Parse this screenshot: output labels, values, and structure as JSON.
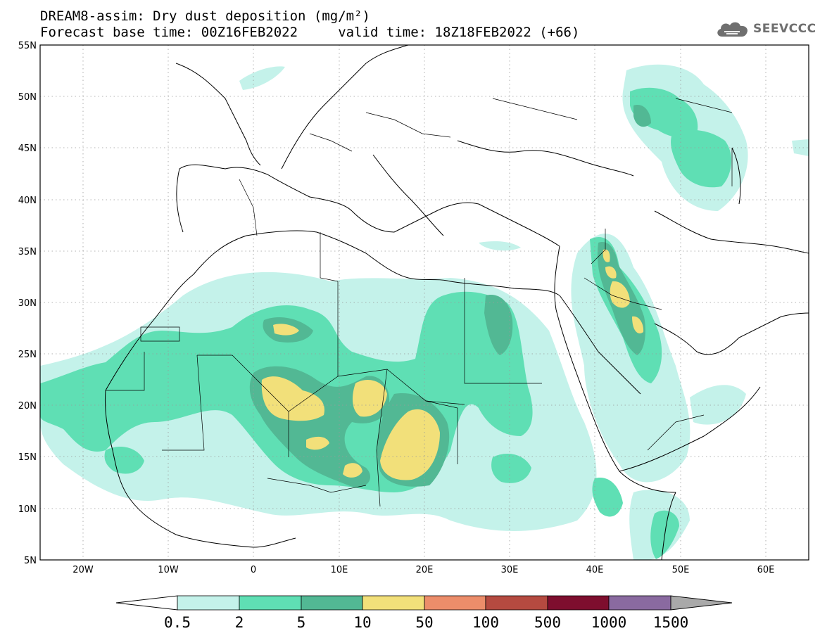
{
  "title_line1": "DREAM8-assim: Dry dust deposition (mg/m²)",
  "title_line2": "Forecast base time: 00Z16FEB2022     valid time: 18Z18FEB2022 (+66)",
  "brand": {
    "name": "SEEVCCC",
    "icon": "cloud-logo-icon"
  },
  "map": {
    "lat_range": [
      5,
      55
    ],
    "lon_range": [
      -25,
      65
    ],
    "lat_ticks": [
      "55N",
      "50N",
      "45N",
      "40N",
      "35N",
      "30N",
      "25N",
      "20N",
      "15N",
      "10N",
      "5N"
    ],
    "lon_ticks": [
      "20W",
      "10W",
      "0",
      "10E",
      "20E",
      "30E",
      "40E",
      "50E",
      "60E"
    ],
    "grid": "dotted",
    "background": "#ffffff"
  },
  "colorbar": {
    "levels": [
      "0.5",
      "2",
      "5",
      "10",
      "50",
      "100",
      "500",
      "1000",
      "1500"
    ],
    "colors": [
      "#c4f2ea",
      "#5fdfb4",
      "#52b894",
      "#f2e07a",
      "#ec8d6a",
      "#b54a40",
      "#7e0e2e",
      "#8a6aa0"
    ],
    "left_extend_color": "#ffffff",
    "right_extend_color": "#a9a9a9"
  }
}
